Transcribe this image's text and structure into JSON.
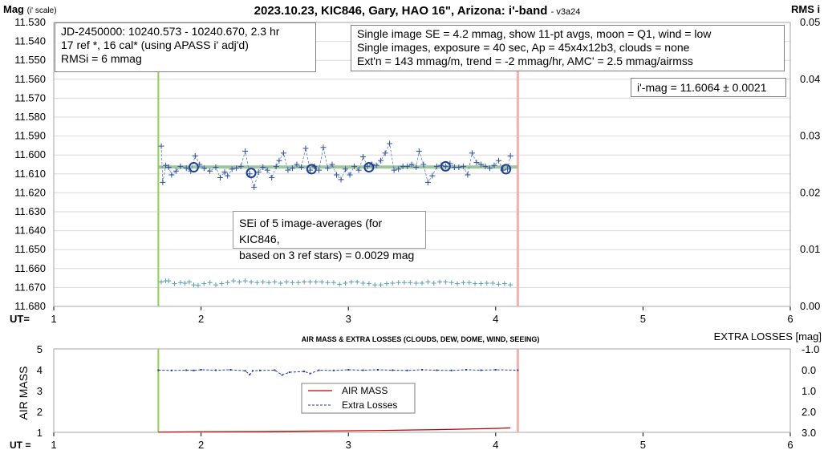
{
  "chart_data": [
    {
      "type": "scatter",
      "title": "2023.10.23, KIC846, Gary, HAO 16\", Arizona: i'-band",
      "version": "- v3a24",
      "ylabel": "Mag",
      "ylabel_sub": "(i' scale)",
      "y2label": "RMS i",
      "xlabel": "UT=",
      "xlim": [
        1,
        6
      ],
      "ylim": [
        11.53,
        11.68
      ],
      "y_inverted": true,
      "y2lim": [
        0.0,
        0.05
      ],
      "x_ticks": [
        "1",
        "2",
        "3",
        "4",
        "5",
        "6"
      ],
      "y_ticks": [
        "11.530",
        "11.540",
        "11.550",
        "11.560",
        "11.570",
        "11.580",
        "11.590",
        "11.600",
        "11.610",
        "11.620",
        "11.630",
        "11.640",
        "11.650",
        "11.660",
        "11.670",
        "11.680"
      ],
      "y2_ticks": [
        "0.05",
        "0.04",
        "0.03",
        "0.02",
        "0.01",
        "0.00"
      ],
      "vline_start": 1.71,
      "vline_end": 4.15,
      "mean_mag": 11.6064,
      "annotations": {
        "info_left": [
          "JD-2450000: 10240.573 - 10240.670, 2.3  hr",
          "17 ref *, 16 cal* (using APASS i' adj'd)",
          "RMSi = 6 mmag"
        ],
        "info_right": [
          "Single image SE = 4.2 mmag, show 11-pt avgs, moon = Q1, wind = low",
          "Single images, exposure = 40 sec, Ap = 45x4x12b3, clouds = none",
          "Ext'n = 143 mmag/m, trend = -2 mmag/hr, AMC' = 2.5 mmag/airmss"
        ],
        "imag": "i'-mag = 11.6064 ± 0.0021",
        "sei": [
          "SEi of 5 image-averages (for KIC846,",
          "based on 3 ref stars) = 0.0029 mag"
        ]
      },
      "series": [
        {
          "name": "single",
          "x": [
            1.73,
            1.74,
            1.76,
            1.78,
            1.8,
            1.83,
            1.86,
            1.9,
            1.93,
            1.96,
            1.99,
            2.02,
            2.06,
            2.1,
            2.13,
            2.16,
            2.18,
            2.21,
            2.24,
            2.27,
            2.3,
            2.33,
            2.36,
            2.39,
            2.42,
            2.45,
            2.48,
            2.51,
            2.53,
            2.56,
            2.59,
            2.62,
            2.65,
            2.68,
            2.71,
            2.74,
            2.77,
            2.8,
            2.83,
            2.86,
            2.89,
            2.92,
            2.95,
            2.98,
            3.01,
            3.04,
            3.07,
            3.1,
            3.13,
            3.16,
            3.19,
            3.22,
            3.25,
            3.28,
            3.31,
            3.34,
            3.37,
            3.4,
            3.43,
            3.46,
            3.48,
            3.51,
            3.54,
            3.57,
            3.6,
            3.63,
            3.66,
            3.69,
            3.72,
            3.75,
            3.78,
            3.81,
            3.84,
            3.87,
            3.9,
            3.93,
            3.96,
            3.99,
            4.02,
            4.05,
            4.08,
            4.1
          ],
          "values": [
            11.5953,
            11.6145,
            11.6055,
            11.6065,
            11.6105,
            11.6085,
            11.606,
            11.607,
            11.6085,
            11.6005,
            11.605,
            11.607,
            11.6085,
            11.6065,
            11.612,
            11.609,
            11.611,
            11.6075,
            11.607,
            11.606,
            11.598,
            11.61,
            11.617,
            11.609,
            11.6065,
            11.608,
            11.612,
            11.606,
            11.603,
            11.599,
            11.608,
            11.607,
            11.605,
            11.6065,
            11.5965,
            11.608,
            11.606,
            11.608,
            11.596,
            11.607,
            11.605,
            11.6105,
            11.613,
            11.6075,
            11.6105,
            11.606,
            11.608,
            11.601,
            11.606,
            11.605,
            11.6055,
            11.603,
            11.599,
            11.594,
            11.608,
            11.6075,
            11.606,
            11.606,
            11.605,
            11.6065,
            11.598,
            11.605,
            11.6145,
            11.611,
            11.606,
            11.6055,
            11.606,
            11.6045,
            11.6065,
            11.6065,
            11.606,
            11.6105,
            11.599,
            11.604,
            11.605,
            11.606,
            11.607,
            11.6055,
            11.603,
            11.608,
            11.6075,
            11.6005
          ]
        },
        {
          "name": "averages",
          "x": [
            1.95,
            2.34,
            2.75,
            3.14,
            3.66,
            4.07
          ],
          "values": [
            11.6065,
            11.6095,
            11.6075,
            11.6065,
            11.606,
            11.6075
          ]
        },
        {
          "name": "rms",
          "x": [
            1.73,
            1.76,
            1.78,
            1.82,
            1.86,
            1.89,
            1.92,
            1.95,
            1.98,
            2.02,
            2.06,
            2.1,
            2.14,
            2.18,
            2.22,
            2.26,
            2.3,
            2.34,
            2.38,
            2.42,
            2.46,
            2.5,
            2.54,
            2.58,
            2.62,
            2.66,
            2.7,
            2.74,
            2.78,
            2.82,
            2.86,
            2.9,
            2.94,
            2.98,
            3.02,
            3.06,
            3.1,
            3.14,
            3.18,
            3.22,
            3.26,
            3.3,
            3.34,
            3.38,
            3.42,
            3.46,
            3.5,
            3.54,
            3.58,
            3.62,
            3.66,
            3.7,
            3.74,
            3.78,
            3.82,
            3.86,
            3.9,
            3.94,
            3.98,
            4.02,
            4.06,
            4.1
          ],
          "values": [
            0.0043,
            0.0045,
            0.0045,
            0.004,
            0.0042,
            0.0041,
            0.0043,
            0.0038,
            0.0037,
            0.004,
            0.0042,
            0.0038,
            0.004,
            0.0042,
            0.0045,
            0.0043,
            0.0045,
            0.0043,
            0.0042,
            0.0043,
            0.0042,
            0.0043,
            0.0041,
            0.0043,
            0.0042,
            0.0042,
            0.0043,
            0.0043,
            0.0043,
            0.0043,
            0.0042,
            0.0042,
            0.0039,
            0.0041,
            0.0043,
            0.0043,
            0.0041,
            0.004,
            0.0038,
            0.0038,
            0.004,
            0.0041,
            0.0042,
            0.0042,
            0.0042,
            0.0041,
            0.0041,
            0.0043,
            0.0041,
            0.0043,
            0.0043,
            0.0042,
            0.004,
            0.0042,
            0.0042,
            0.004,
            0.004,
            0.0041,
            0.0041,
            0.0039,
            0.004,
            0.0038
          ]
        }
      ]
    },
    {
      "type": "line",
      "title": "AIR MASS & EXTRA LOSSES (CLOUDS, DEW, DOME, WIND, SEEING)",
      "ylabel": "AIR MASS",
      "y2label": "EXTRA LOSSES [mag]",
      "xlabel": "UT =",
      "xlim": [
        1,
        6
      ],
      "ylim": [
        1,
        5
      ],
      "y2lim": [
        -1.0,
        3.0
      ],
      "y2_inverted": true,
      "x_ticks": [
        "1",
        "2",
        "3",
        "4",
        "5",
        "6"
      ],
      "y_ticks": [
        "5",
        "4",
        "3",
        "2",
        "1"
      ],
      "y2_ticks": [
        "-1.0",
        "0.0",
        "1.0",
        "2.0",
        "3.0"
      ],
      "legend": [
        "AIR MASS",
        "Extra Losses"
      ],
      "legend_position": "center",
      "series": [
        {
          "name": "AIR MASS",
          "x": [
            1.71,
            2.0,
            2.4,
            2.8,
            3.2,
            3.6,
            4.0,
            4.1
          ],
          "values": [
            1.01,
            1.03,
            1.04,
            1.06,
            1.09,
            1.13,
            1.19,
            1.21
          ]
        },
        {
          "name": "Extra Losses",
          "x": [
            1.71,
            1.8,
            1.9,
            1.95,
            2.0,
            2.1,
            2.2,
            2.3,
            2.33,
            2.35,
            2.4,
            2.5,
            2.55,
            2.6,
            2.7,
            2.74,
            2.8,
            2.9,
            3.0,
            3.1,
            3.2,
            3.3,
            3.4,
            3.5,
            3.6,
            3.7,
            3.8,
            3.9,
            4.0,
            4.15
          ],
          "values": [
            0.02,
            0.03,
            0.02,
            0.03,
            0.0,
            0.02,
            0.0,
            0.05,
            0.23,
            0.05,
            0.03,
            0.02,
            0.25,
            0.12,
            0.08,
            0.18,
            0.02,
            0.03,
            0.0,
            0.02,
            0.0,
            0.02,
            0.03,
            0.0,
            0.02,
            0.03,
            0.0,
            0.02,
            0.0,
            0.02
          ]
        }
      ]
    }
  ]
}
